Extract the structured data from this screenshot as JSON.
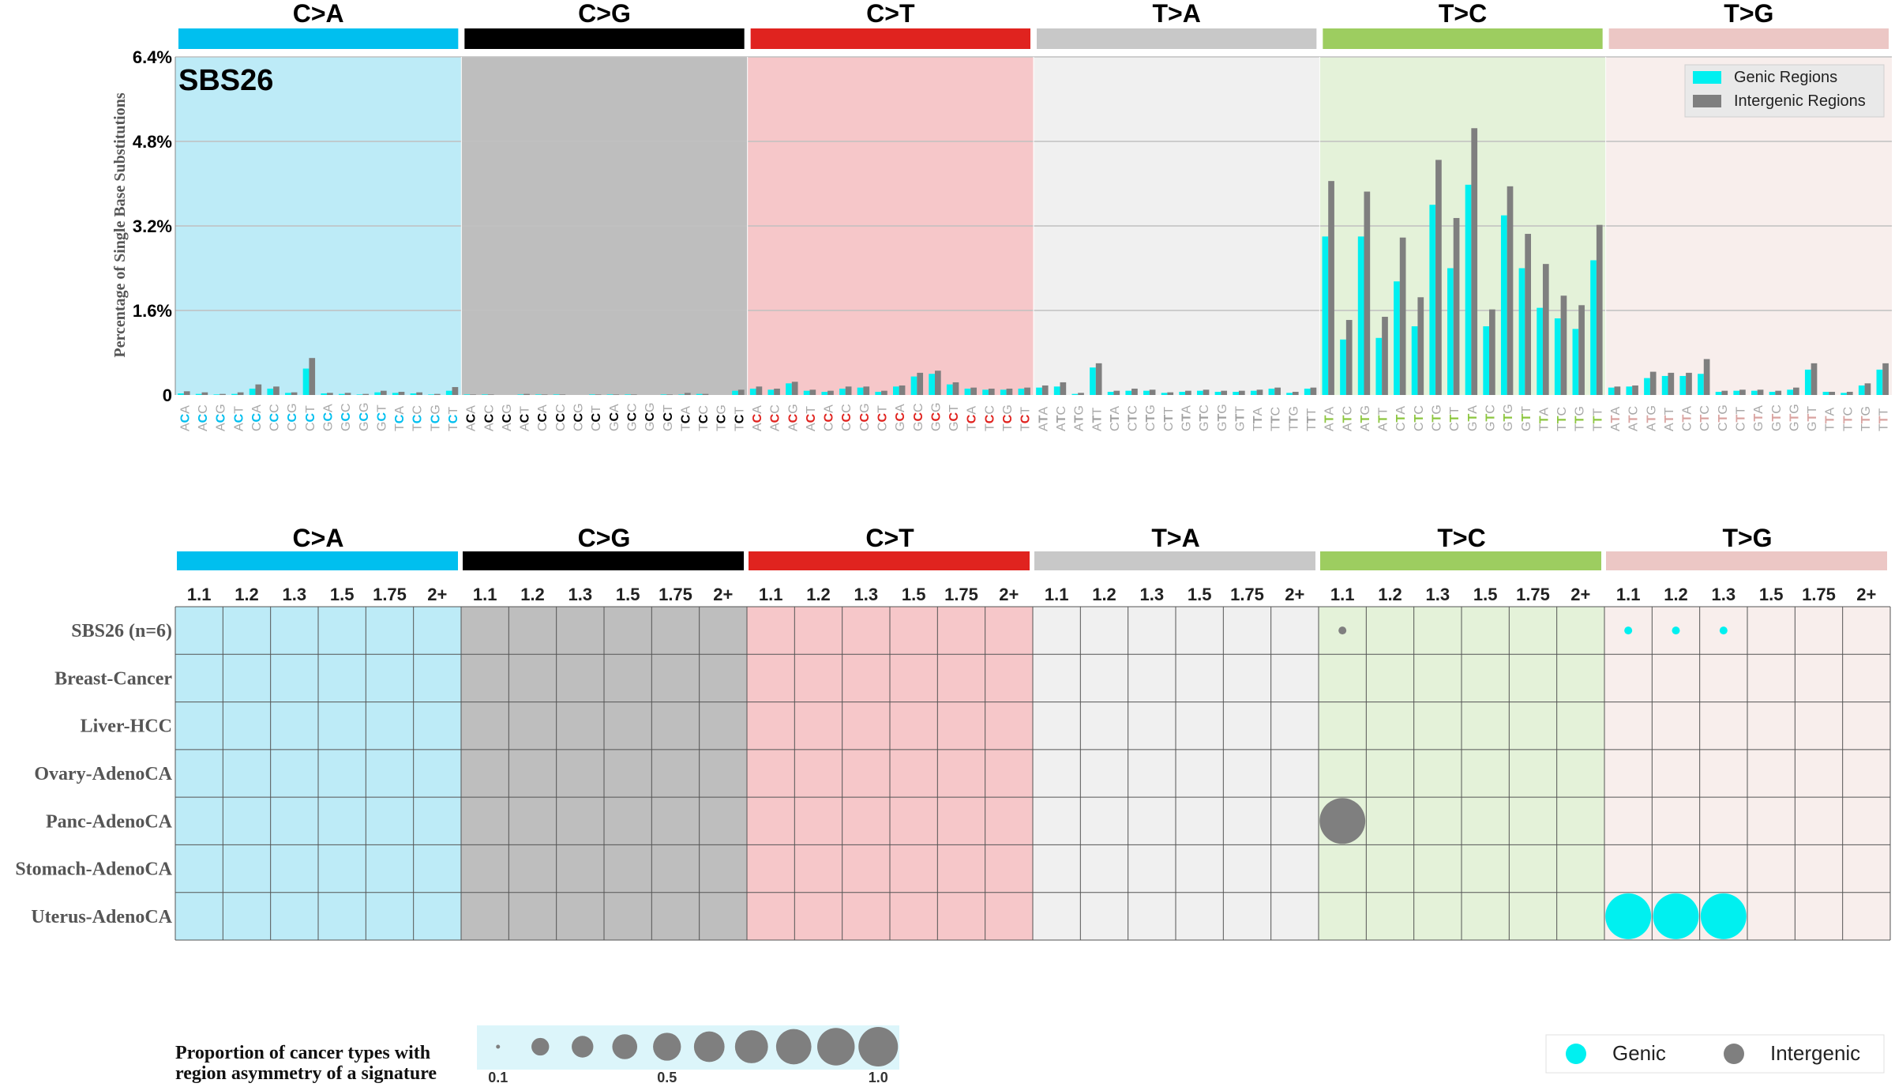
{
  "chart_data": [
    {
      "type": "bar",
      "title": "SBS26",
      "ylabel": "Percentage of Single Base Substitutions",
      "ylim": [
        0,
        6.4
      ],
      "yticks": [
        "0",
        "1.6%",
        "3.2%",
        "4.8%",
        "6.4%"
      ],
      "ytick_values": [
        0,
        1.6,
        3.2,
        4.8,
        6.4
      ],
      "grid": true,
      "legend_position": "top-right",
      "mutation_types": [
        "C>A",
        "C>G",
        "C>T",
        "T>A",
        "T>C",
        "T>G"
      ],
      "categories": [
        "ACA",
        "ACC",
        "ACG",
        "ACT",
        "CCA",
        "CCC",
        "CCG",
        "CCT",
        "GCA",
        "GCC",
        "GCG",
        "GCT",
        "TCA",
        "TCC",
        "TCG",
        "TCT",
        "ACA",
        "ACC",
        "ACG",
        "ACT",
        "CCA",
        "CCC",
        "CCG",
        "CCT",
        "GCA",
        "GCC",
        "GCG",
        "GCT",
        "TCA",
        "TCC",
        "TCG",
        "TCT",
        "ACA",
        "ACC",
        "ACG",
        "ACT",
        "CCA",
        "CCC",
        "CCG",
        "CCT",
        "GCA",
        "GCC",
        "GCG",
        "GCT",
        "TCA",
        "TCC",
        "TCG",
        "TCT",
        "ATA",
        "ATC",
        "ATG",
        "ATT",
        "CTA",
        "CTC",
        "CTG",
        "CTT",
        "GTA",
        "GTC",
        "GTG",
        "GTT",
        "TTA",
        "TTC",
        "TTG",
        "TTT",
        "ATA",
        "ATC",
        "ATG",
        "ATT",
        "CTA",
        "CTC",
        "CTG",
        "CTT",
        "GTA",
        "GTC",
        "GTG",
        "GTT",
        "TTA",
        "TTC",
        "TTG",
        "TTT",
        "ATA",
        "ATC",
        "ATG",
        "ATT",
        "CTA",
        "CTC",
        "CTG",
        "CTT",
        "GTA",
        "GTC",
        "GTG",
        "GTT",
        "TTA",
        "TTC",
        "TTG",
        "TTT"
      ],
      "series": [
        {
          "name": "Genic Regions",
          "color": "#00f0f0",
          "values": [
            0.03,
            0.02,
            0.01,
            0.02,
            0.12,
            0.12,
            0.04,
            0.5,
            0.03,
            0.02,
            0.01,
            0.05,
            0.04,
            0.03,
            0.01,
            0.08,
            0.01,
            0.01,
            0.0,
            0.01,
            0.01,
            0.01,
            0.0,
            0.01,
            0.01,
            0.01,
            0.0,
            0.01,
            0.01,
            0.02,
            0.0,
            0.08,
            0.12,
            0.1,
            0.22,
            0.08,
            0.06,
            0.12,
            0.14,
            0.06,
            0.16,
            0.35,
            0.4,
            0.2,
            0.12,
            0.1,
            0.1,
            0.12,
            0.14,
            0.16,
            0.02,
            0.52,
            0.06,
            0.08,
            0.08,
            0.04,
            0.06,
            0.08,
            0.06,
            0.06,
            0.08,
            0.12,
            0.04,
            0.12,
            3.0,
            1.05,
            3.0,
            1.08,
            2.15,
            1.3,
            3.6,
            2.4,
            3.98,
            1.3,
            3.4,
            2.4,
            1.65,
            1.45,
            1.25,
            2.55,
            0.14,
            0.16,
            0.32,
            0.36,
            0.36,
            0.4,
            0.06,
            0.08,
            0.08,
            0.06,
            0.1,
            0.48,
            0.06,
            0.04,
            0.18,
            0.48
          ]
        },
        {
          "name": "Intergenic Regions",
          "color": "#7f7f7f",
          "values": [
            0.07,
            0.05,
            0.02,
            0.05,
            0.2,
            0.16,
            0.05,
            0.7,
            0.04,
            0.04,
            0.02,
            0.08,
            0.06,
            0.05,
            0.02,
            0.15,
            0.01,
            0.01,
            0.0,
            0.02,
            0.01,
            0.01,
            0.0,
            0.01,
            0.01,
            0.01,
            0.0,
            0.01,
            0.04,
            0.02,
            0.0,
            0.1,
            0.16,
            0.12,
            0.25,
            0.1,
            0.08,
            0.16,
            0.16,
            0.08,
            0.18,
            0.42,
            0.46,
            0.24,
            0.14,
            0.12,
            0.12,
            0.14,
            0.18,
            0.24,
            0.04,
            0.6,
            0.08,
            0.12,
            0.1,
            0.05,
            0.08,
            0.1,
            0.08,
            0.08,
            0.1,
            0.14,
            0.06,
            0.14,
            4.05,
            1.42,
            3.85,
            1.48,
            2.98,
            1.85,
            4.45,
            3.35,
            5.05,
            1.62,
            3.95,
            3.05,
            2.48,
            1.88,
            1.7,
            3.22,
            0.16,
            0.18,
            0.44,
            0.42,
            0.42,
            0.68,
            0.08,
            0.1,
            0.1,
            0.08,
            0.14,
            0.6,
            0.06,
            0.06,
            0.22,
            0.6
          ]
        }
      ]
    },
    {
      "type": "scatter",
      "mutation_types": [
        "C>A",
        "C>G",
        "C>T",
        "T>A",
        "T>C",
        "T>G"
      ],
      "column_labels": [
        "1.1",
        "1.2",
        "1.3",
        "1.5",
        "1.75",
        "2+"
      ],
      "rows": [
        "SBS26 (n=6)",
        "Breast-Cancer",
        "Liver-HCC",
        "Ovary-AdenoCA",
        "Panc-AdenoCA",
        "Stomach-AdenoCA",
        "Uterus-AdenoCA"
      ],
      "points": [
        {
          "row": "SBS26 (n=6)",
          "mutation": "T>C",
          "column": "1.1",
          "type": "Intergenic",
          "proportion": 0.1
        },
        {
          "row": "SBS26 (n=6)",
          "mutation": "T>G",
          "column": "1.1",
          "type": "Genic",
          "proportion": 0.15
        },
        {
          "row": "SBS26 (n=6)",
          "mutation": "T>G",
          "column": "1.2",
          "type": "Genic",
          "proportion": 0.15
        },
        {
          "row": "SBS26 (n=6)",
          "mutation": "T>G",
          "column": "1.3",
          "type": "Genic",
          "proportion": 0.15
        },
        {
          "row": "Panc-AdenoCA",
          "mutation": "T>C",
          "column": "1.1",
          "type": "Intergenic",
          "proportion": 1.0
        },
        {
          "row": "Uterus-AdenoCA",
          "mutation": "T>G",
          "column": "1.1",
          "type": "Genic",
          "proportion": 1.0
        },
        {
          "row": "Uterus-AdenoCA",
          "mutation": "T>G",
          "column": "1.2",
          "type": "Genic",
          "proportion": 1.0
        },
        {
          "row": "Uterus-AdenoCA",
          "mutation": "T>G",
          "column": "1.3",
          "type": "Genic",
          "proportion": 1.0
        }
      ],
      "size_legend": {
        "title_line1": "Proportion of cancer types with",
        "title_line2": "region asymmetry of a signature",
        "sizes": [
          0.1,
          0.2,
          0.3,
          0.4,
          0.5,
          0.6,
          0.7,
          0.8,
          0.9,
          1.0
        ],
        "tick_labels": [
          "0.1",
          "0.5",
          "1.0"
        ],
        "tick_values": [
          0.1,
          0.5,
          1.0
        ]
      },
      "color_legend": [
        {
          "label": "Genic",
          "color": "#00f0f0"
        },
        {
          "label": "Intergenic",
          "color": "#7f7f7f"
        }
      ]
    }
  ],
  "colors": {
    "mutation_bars": [
      "#00bfef",
      "#000000",
      "#e0231f",
      "#c8c8c8",
      "#9dcd60",
      "#ecc7c5"
    ],
    "panel_backgrounds": [
      "#bdebf7",
      "#bebebe",
      "#f6c7c9",
      "#f0f0f0",
      "#e4f2d9",
      "#f8eeec"
    ],
    "mutation_text": [
      "#00bfef",
      "#000000",
      "#e0231f",
      "#a0a0a0",
      "#8cc63f",
      "#d9a3a0"
    ]
  }
}
